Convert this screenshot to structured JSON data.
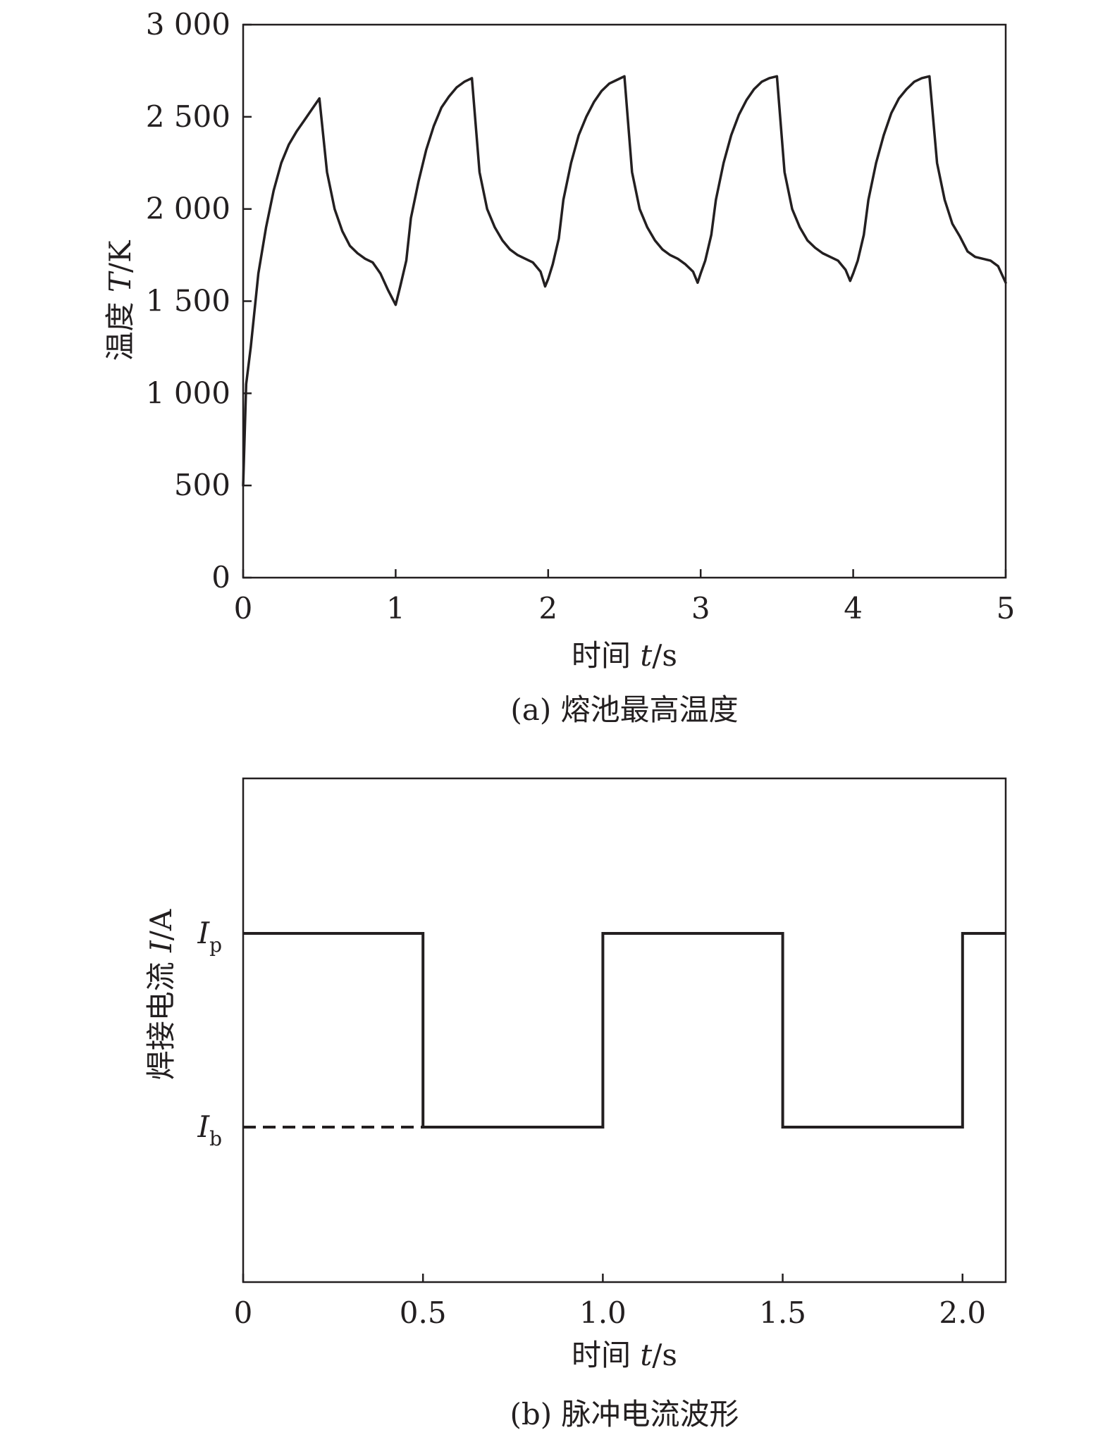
{
  "chart_data": [
    {
      "type": "line",
      "caption": "(a) 熔池最高温度",
      "xlabel": {
        "prefix": "时间 ",
        "var": "t",
        "unit": "/s"
      },
      "ylabel": {
        "prefix": "温度 ",
        "var": "T",
        "unit": "/K"
      },
      "xlim": [
        0,
        5
      ],
      "ylim": [
        0,
        3000
      ],
      "xticks": [
        "0",
        "1",
        "2",
        "3",
        "4",
        "5"
      ],
      "yticks": [
        "0",
        "500",
        "1 000",
        "1 500",
        "2 000",
        "2 500",
        "3 000"
      ],
      "series": [
        {
          "x": [
            0,
            0.02,
            0.05,
            0.1,
            0.15,
            0.2,
            0.25,
            0.3,
            0.35,
            0.4,
            0.45,
            0.5,
            0.55,
            0.6,
            0.65,
            0.7,
            0.75,
            0.8,
            0.85,
            0.9,
            0.95,
            1.0,
            1.03,
            1.07,
            1.1,
            1.15,
            1.2,
            1.25,
            1.3,
            1.35,
            1.4,
            1.45,
            1.5,
            1.55,
            1.6,
            1.65,
            1.7,
            1.75,
            1.8,
            1.85,
            1.9,
            1.95,
            1.98,
            2.0,
            2.03,
            2.07,
            2.1,
            2.15,
            2.2,
            2.25,
            2.3,
            2.35,
            2.4,
            2.45,
            2.5,
            2.55,
            2.6,
            2.65,
            2.7,
            2.75,
            2.8,
            2.85,
            2.9,
            2.95,
            2.98,
            3.0,
            3.03,
            3.07,
            3.1,
            3.15,
            3.2,
            3.25,
            3.3,
            3.35,
            3.4,
            3.45,
            3.5,
            3.55,
            3.6,
            3.65,
            3.7,
            3.75,
            3.8,
            3.85,
            3.9,
            3.95,
            3.98,
            4.0,
            4.03,
            4.07,
            4.1,
            4.15,
            4.2,
            4.25,
            4.3,
            4.35,
            4.4,
            4.45,
            4.5,
            4.55,
            4.6,
            4.65,
            4.7,
            4.75,
            4.8,
            4.85,
            4.9,
            4.95,
            5.0
          ],
          "y": [
            500,
            1050,
            1250,
            1650,
            1900,
            2100,
            2250,
            2350,
            2420,
            2480,
            2540,
            2600,
            2200,
            2000,
            1880,
            1800,
            1760,
            1730,
            1710,
            1650,
            1560,
            1480,
            1580,
            1720,
            1950,
            2150,
            2320,
            2450,
            2550,
            2610,
            2660,
            2690,
            2710,
            2200,
            2000,
            1900,
            1830,
            1780,
            1750,
            1730,
            1710,
            1660,
            1580,
            1620,
            1700,
            1840,
            2050,
            2250,
            2400,
            2500,
            2580,
            2640,
            2680,
            2700,
            2720,
            2200,
            2000,
            1900,
            1830,
            1780,
            1750,
            1730,
            1700,
            1660,
            1600,
            1650,
            1720,
            1860,
            2050,
            2250,
            2400,
            2510,
            2590,
            2650,
            2690,
            2710,
            2720,
            2200,
            2000,
            1900,
            1830,
            1790,
            1760,
            1740,
            1720,
            1670,
            1610,
            1650,
            1720,
            1860,
            2050,
            2250,
            2400,
            2520,
            2600,
            2650,
            2690,
            2710,
            2720,
            2250,
            2050,
            1920,
            1850,
            1770,
            1740,
            1730,
            1720,
            1690,
            1600
          ]
        }
      ]
    },
    {
      "type": "line",
      "caption": "(b) 脉冲电流波形",
      "xlabel": {
        "prefix": "时间 ",
        "var": "t",
        "unit": "/s"
      },
      "ylabel": {
        "prefix": "焊接电流 ",
        "var": "I",
        "unit": "/A"
      },
      "xlim": [
        0,
        2.12
      ],
      "xticks": [
        "0",
        "0.5",
        "1.0",
        "1.5",
        "2.0"
      ],
      "yticks": [
        {
          "base": "I",
          "sub": "p",
          "level": "peak"
        },
        {
          "base": "I",
          "sub": "b",
          "level": "base"
        }
      ],
      "levels": {
        "peak": 1,
        "base": 0
      },
      "ylim": [
        -0.8,
        1.8
      ],
      "series": [
        {
          "x": [
            0,
            0.5,
            0.5,
            1.0,
            1.0,
            1.5,
            1.5,
            2.0,
            2.0,
            2.12
          ],
          "y": [
            1,
            1,
            0,
            0,
            1,
            1,
            0,
            0,
            1,
            1
          ]
        },
        {
          "style": "dashed",
          "x": [
            0,
            0.5
          ],
          "y": [
            0,
            0
          ]
        }
      ]
    }
  ]
}
